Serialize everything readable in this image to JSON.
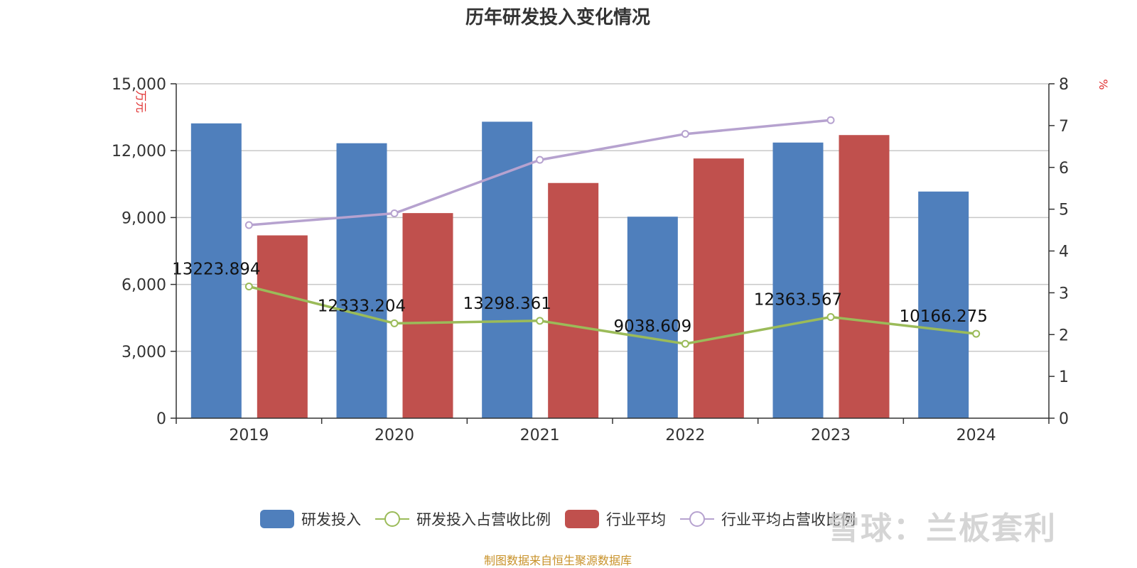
{
  "title": "历年研发投入变化情况",
  "source_note": "制图数据来自恒生聚源数据库",
  "watermark": "雪球：兰板套利",
  "colors": {
    "rd_bar": "#4f7fbc",
    "industry_bar": "#c0504d",
    "rd_ratio_line": "#9bbb59",
    "industry_ratio_line": "#b6a2cf",
    "axis_unit": "#e03030",
    "grid": "#c8c8c8",
    "axis": "#333333"
  },
  "chart_data": {
    "type": "bar",
    "categories": [
      "2019",
      "2020",
      "2021",
      "2022",
      "2023",
      "2024"
    ],
    "series": [
      {
        "name": "研发投入",
        "type": "bar",
        "axis": "left",
        "values": [
          13223.894,
          12333.204,
          13298.361,
          9038.609,
          12363.567,
          10166.275
        ],
        "data_labels": [
          "13223.894",
          "12333.204",
          "13298.361",
          "9038.609",
          "12363.567",
          "10166.275"
        ]
      },
      {
        "name": "研发投入占营收比例",
        "type": "line",
        "axis": "right",
        "values": [
          3.15,
          2.27,
          2.33,
          1.78,
          2.42,
          2.02
        ]
      },
      {
        "name": "行业平均",
        "type": "bar",
        "axis": "left",
        "values": [
          8200,
          9200,
          10550,
          11650,
          12700,
          null
        ]
      },
      {
        "name": "行业平均占营收比例",
        "type": "line",
        "axis": "right",
        "values": [
          4.62,
          4.9,
          6.18,
          6.8,
          7.13,
          null
        ]
      }
    ],
    "y_left": {
      "unit": "万元",
      "ylim": [
        0,
        15000
      ],
      "ticks": [
        0,
        3000,
        6000,
        9000,
        12000,
        15000
      ],
      "tick_labels": [
        "0",
        "3,000",
        "6,000",
        "9,000",
        "12,000",
        "15,000"
      ]
    },
    "y_right": {
      "unit": "%",
      "ylim": [
        0,
        8
      ],
      "ticks": [
        0,
        1,
        2,
        3,
        4,
        5,
        6,
        7,
        8
      ],
      "tick_labels": [
        "0",
        "1",
        "2",
        "3",
        "4",
        "5",
        "6",
        "7",
        "8"
      ]
    },
    "grid": true,
    "legend_position": "bottom"
  }
}
